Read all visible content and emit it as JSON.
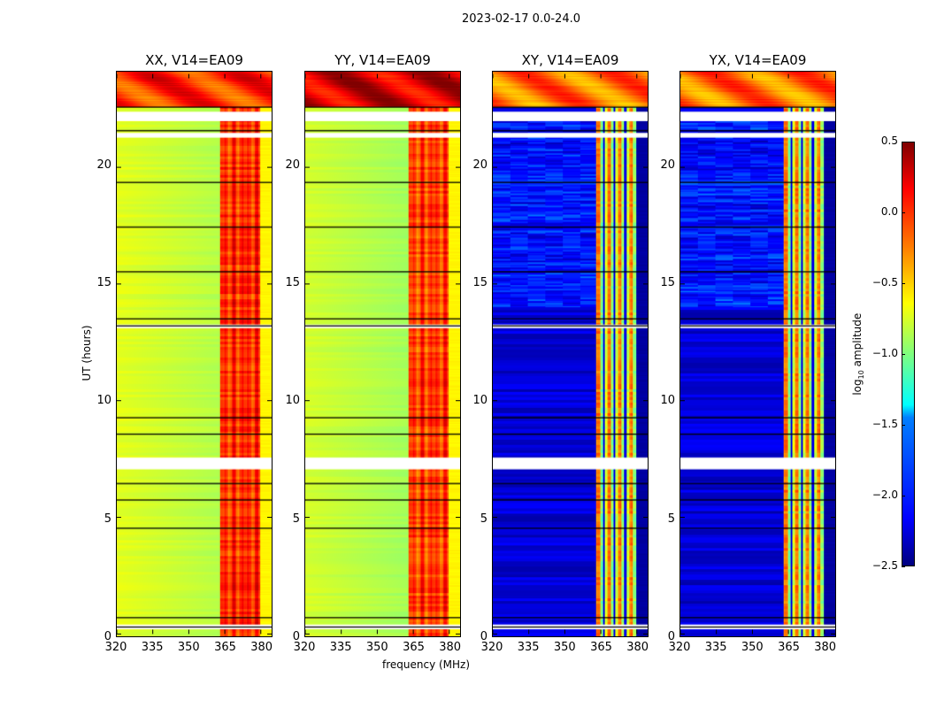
{
  "suptitle": "2023-02-17 0.0-24.0",
  "xlabel": "frequency (MHz)",
  "ylabel": "UT (hours)",
  "colorbar": {
    "label_main": "log",
    "label_sub": "10",
    "label_rest": " amplitude",
    "range": [
      -2.5,
      0.5
    ],
    "ticks": [
      "0.5",
      "0.0",
      "−0.5",
      "−1.0",
      "−1.5",
      "−2.0",
      "−2.5"
    ],
    "tick_values": [
      0.5,
      0,
      -0.5,
      -1,
      -1.5,
      -2,
      -2.5
    ],
    "colormap": "jet"
  },
  "chart_data": {
    "type": "heatmap",
    "xlim": [
      320,
      384.5
    ],
    "ylim": [
      0,
      24
    ],
    "xticks": [
      "320",
      "335",
      "350",
      "365",
      "380"
    ],
    "xtick_values": [
      320,
      335,
      350,
      365,
      380
    ],
    "yticks": [
      "0",
      "5",
      "10",
      "15",
      "20"
    ],
    "ytick_values": [
      0,
      5,
      10,
      15,
      20
    ],
    "flagged_hours": [
      [
        21.9,
        22.3
      ],
      [
        21.2,
        21.4
      ],
      [
        13.1,
        13.25
      ],
      [
        7.1,
        7.6
      ],
      [
        0.3,
        0.5
      ]
    ],
    "gap_lines_hours": [
      22.5,
      21.5,
      19.3,
      17.4,
      15.5,
      13.5,
      13.2,
      9.3,
      8.6,
      6.5,
      5.8,
      4.6,
      0.8,
      0.4
    ],
    "band_MHz": [
      363,
      379.5
    ],
    "panels": [
      {
        "title": "XX, V14=EA09",
        "cross": false,
        "low_band_level": -0.7,
        "high_band_level": -0.05,
        "top_level": 0.0,
        "edge_level": -0.6
      },
      {
        "title": "YY, V14=EA09",
        "cross": false,
        "low_band_level": -0.75,
        "high_band_level": -0.1,
        "top_level": 0.25,
        "edge_level": -0.6
      },
      {
        "title": "XY, V14=EA09",
        "cross": true,
        "low_band_level": -2.25,
        "high_band_level": -0.8,
        "top_level": -0.2,
        "edge_level": -2.4
      },
      {
        "title": "YX, V14=EA09",
        "cross": true,
        "low_band_level": -2.25,
        "high_band_level": -0.8,
        "top_level": -0.2,
        "edge_level": -2.4
      }
    ]
  }
}
